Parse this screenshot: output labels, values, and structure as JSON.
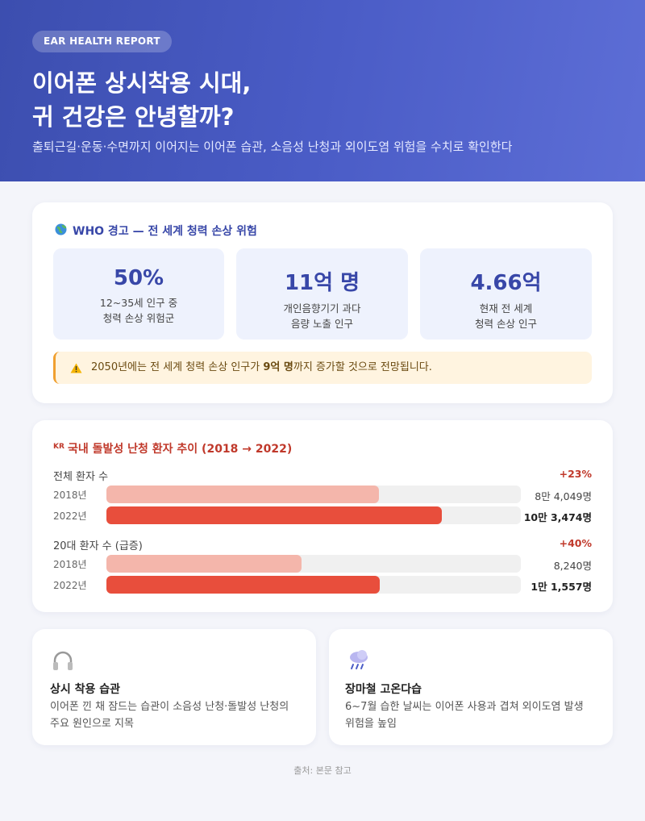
{
  "header": {
    "badge": "EAR HEALTH REPORT",
    "title_lines": [
      "이어폰 상시착용 시대,",
      "귀 건강은 안녕할까?"
    ],
    "subtitle": "출퇴근길·운동·수면까지 이어지는 이어폰 습관, 소음성 난청과 외이도염 위험을 수치로 확인한다"
  },
  "who": {
    "title": "WHO 경고 — 전 세계 청력 손상 위험",
    "stats": [
      {
        "value": "50%",
        "caption_lines": [
          "12~35세 인구 중",
          "청력 손상 위험군"
        ]
      },
      {
        "value": "11억 명",
        "caption_lines": [
          "개인음향기기 과다",
          "음량 노출 인구"
        ]
      },
      {
        "value": "4.66억",
        "caption_lines": [
          "현재 전 세계",
          "청력 손상 인구"
        ]
      }
    ],
    "warning": {
      "before": "2050년에는 전 세계 청력 손상 인구가 ",
      "bold": "9억 명",
      "after": "까지 증가할 것으로 전망됩니다."
    }
  },
  "trend": {
    "badge": "KR",
    "title": "국내 돌발성 난청 환자 추이 (2018 → 2022)",
    "groups": [
      {
        "label": "전체 환자 수",
        "change": "+23%",
        "xlim": [
          0,
          128000
        ],
        "rows": [
          {
            "year": "2018년",
            "value": 84049,
            "value_label": "8만 4,049명"
          },
          {
            "year": "2022년",
            "value": 103474,
            "value_label": "10만 3,474명"
          }
        ]
      },
      {
        "label": "20대 환자 수 (급증)",
        "change": "+40%",
        "xlim": [
          0,
          17500
        ],
        "rows": [
          {
            "year": "2018년",
            "value": 8240,
            "value_label": "8,240명"
          },
          {
            "year": "2022년",
            "value": 11557,
            "value_label": "1만 1,557명"
          }
        ]
      }
    ]
  },
  "cards": [
    {
      "title": "상시 착용 습관",
      "text_lines": [
        "이어폰 낀 채 잠드는 습관이 소음성 난청·돌발성 난청의",
        "주요 원인으로 지목"
      ]
    },
    {
      "title": "장마철 고온다습",
      "text_lines": [
        "6~7월 습한 날씨는 이어폰 사용과 겹쳐 외이도염 발생",
        "위험을 높임"
      ]
    }
  ],
  "source": "출처: 본문 참고"
}
